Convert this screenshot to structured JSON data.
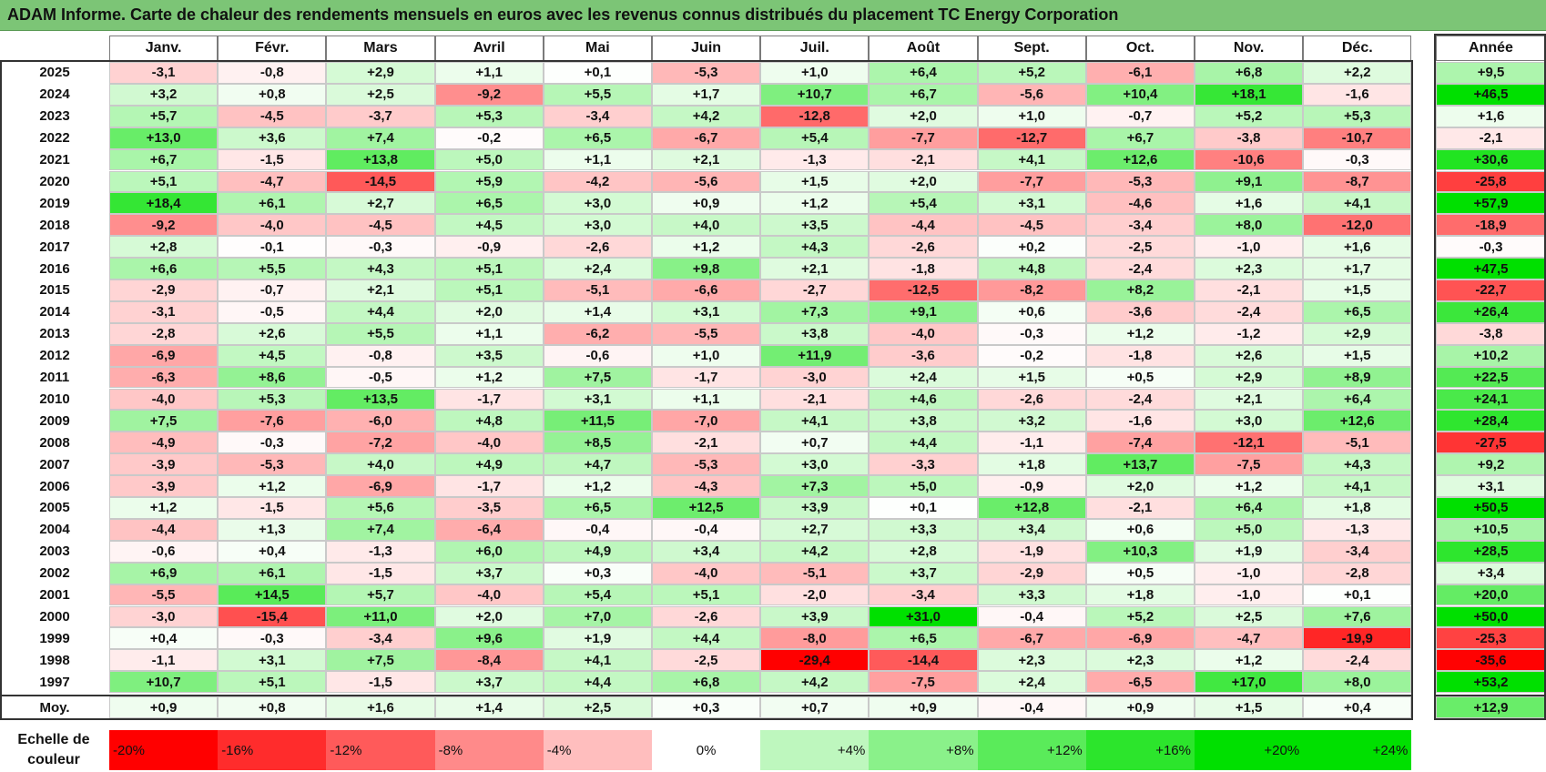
{
  "title": "ADAM Informe. Carte de chaleur des rendements mensuels en euros avec les revenus connus distribués du placement TC Energy Corporation",
  "months": [
    "Janv.",
    "Févr.",
    "Mars",
    "Avril",
    "Mai",
    "Juin",
    "Juil.",
    "Août",
    "Sept.",
    "Oct.",
    "Nov.",
    "Déc."
  ],
  "annual_header": "Année",
  "average_label": "Moy.",
  "legend_label": "Echelle de couleur",
  "colors": {
    "negative": "#ff0000",
    "zero": "#ffffff",
    "positive": "#00e000",
    "title_bg": "#7cc576"
  },
  "chart_data": {
    "type": "heatmap",
    "title": "ADAM Informe. Carte de chaleur des rendements mensuels en euros avec les revenus connus distribués du placement TC Energy Corporation",
    "x_categories": [
      "Janv.",
      "Févr.",
      "Mars",
      "Avril",
      "Mai",
      "Juin",
      "Juil.",
      "Août",
      "Sept.",
      "Oct.",
      "Nov.",
      "Déc."
    ],
    "rows": [
      {
        "year": "2025",
        "values": [
          "-3,1",
          "-0,8",
          "+2,9",
          "+1,1",
          "+0,1",
          "-5,3",
          "+1,0",
          "+6,4",
          "+5,2",
          "-6,1",
          "+6,8",
          "+2,2"
        ],
        "annual": "+9,5"
      },
      {
        "year": "2024",
        "values": [
          "+3,2",
          "+0,8",
          "+2,5",
          "-9,2",
          "+5,5",
          "+1,7",
          "+10,7",
          "+6,7",
          "-5,6",
          "+10,4",
          "+18,1",
          "-1,6"
        ],
        "annual": "+46,5"
      },
      {
        "year": "2023",
        "values": [
          "+5,7",
          "-4,5",
          "-3,7",
          "+5,3",
          "-3,4",
          "+4,2",
          "-12,8",
          "+2,0",
          "+1,0",
          "-0,7",
          "+5,2",
          "+5,3"
        ],
        "annual": "+1,6"
      },
      {
        "year": "2022",
        "values": [
          "+13,0",
          "+3,6",
          "+7,4",
          "-0,2",
          "+6,5",
          "-6,7",
          "+5,4",
          "-7,7",
          "-12,7",
          "+6,7",
          "-3,8",
          "-10,7"
        ],
        "annual": "-2,1"
      },
      {
        "year": "2021",
        "values": [
          "+6,7",
          "-1,5",
          "+13,8",
          "+5,0",
          "+1,1",
          "+2,1",
          "-1,3",
          "-2,1",
          "+4,1",
          "+12,6",
          "-10,6",
          "-0,3"
        ],
        "annual": "+30,6"
      },
      {
        "year": "2020",
        "values": [
          "+5,1",
          "-4,7",
          "-14,5",
          "+5,9",
          "-4,2",
          "-5,6",
          "+1,5",
          "+2,0",
          "-7,7",
          "-5,3",
          "+9,1",
          "-8,7"
        ],
        "annual": "-25,8"
      },
      {
        "year": "2019",
        "values": [
          "+18,4",
          "+6,1",
          "+2,7",
          "+6,5",
          "+3,0",
          "+0,9",
          "+1,2",
          "+5,4",
          "+3,1",
          "-4,6",
          "+1,6",
          "+4,1"
        ],
        "annual": "+57,9"
      },
      {
        "year": "2018",
        "values": [
          "-9,2",
          "-4,0",
          "-4,5",
          "+4,5",
          "+3,0",
          "+4,0",
          "+3,5",
          "-4,4",
          "-4,5",
          "-3,4",
          "+8,0",
          "-12,0"
        ],
        "annual": "-18,9"
      },
      {
        "year": "2017",
        "values": [
          "+2,8",
          "-0,1",
          "-0,3",
          "-0,9",
          "-2,6",
          "+1,2",
          "+4,3",
          "-2,6",
          "+0,2",
          "-2,5",
          "-1,0",
          "+1,6"
        ],
        "annual": "-0,3"
      },
      {
        "year": "2016",
        "values": [
          "+6,6",
          "+5,5",
          "+4,3",
          "+5,1",
          "+2,4",
          "+9,8",
          "+2,1",
          "-1,8",
          "+4,8",
          "-2,4",
          "+2,3",
          "+1,7"
        ],
        "annual": "+47,5"
      },
      {
        "year": "2015",
        "values": [
          "-2,9",
          "-0,7",
          "+2,1",
          "+5,1",
          "-5,1",
          "-6,6",
          "-2,7",
          "-12,5",
          "-8,2",
          "+8,2",
          "-2,1",
          "+1,5"
        ],
        "annual": "-22,7"
      },
      {
        "year": "2014",
        "values": [
          "-3,1",
          "-0,5",
          "+4,4",
          "+2,0",
          "+1,4",
          "+3,1",
          "+7,3",
          "+9,1",
          "+0,6",
          "-3,6",
          "-2,4",
          "+6,5"
        ],
        "annual": "+26,4"
      },
      {
        "year": "2013",
        "values": [
          "-2,8",
          "+2,6",
          "+5,5",
          "+1,1",
          "-6,2",
          "-5,5",
          "+3,8",
          "-4,0",
          "-0,3",
          "+1,2",
          "-1,2",
          "+2,9"
        ],
        "annual": "-3,8"
      },
      {
        "year": "2012",
        "values": [
          "-6,9",
          "+4,5",
          "-0,8",
          "+3,5",
          "-0,6",
          "+1,0",
          "+11,9",
          "-3,6",
          "-0,2",
          "-1,8",
          "+2,6",
          "+1,5"
        ],
        "annual": "+10,2"
      },
      {
        "year": "2011",
        "values": [
          "-6,3",
          "+8,6",
          "-0,5",
          "+1,2",
          "+7,5",
          "-1,7",
          "-3,0",
          "+2,4",
          "+1,5",
          "+0,5",
          "+2,9",
          "+8,9"
        ],
        "annual": "+22,5"
      },
      {
        "year": "2010",
        "values": [
          "-4,0",
          "+5,3",
          "+13,5",
          "-1,7",
          "+3,1",
          "+1,1",
          "-2,1",
          "+4,6",
          "-2,6",
          "-2,4",
          "+2,1",
          "+6,4"
        ],
        "annual": "+24,1"
      },
      {
        "year": "2009",
        "values": [
          "+7,5",
          "-7,6",
          "-6,0",
          "+4,8",
          "+11,5",
          "-7,0",
          "+4,1",
          "+3,8",
          "+3,2",
          "-1,6",
          "+3,0",
          "+12,6"
        ],
        "annual": "+28,4"
      },
      {
        "year": "2008",
        "values": [
          "-4,9",
          "-0,3",
          "-7,2",
          "-4,0",
          "+8,5",
          "-2,1",
          "+0,7",
          "+4,4",
          "-1,1",
          "-7,4",
          "-12,1",
          "-5,1"
        ],
        "annual": "-27,5"
      },
      {
        "year": "2007",
        "values": [
          "-3,9",
          "-5,3",
          "+4,0",
          "+4,9",
          "+4,7",
          "-5,3",
          "+3,0",
          "-3,3",
          "+1,8",
          "+13,7",
          "-7,5",
          "+4,3"
        ],
        "annual": "+9,2"
      },
      {
        "year": "2006",
        "values": [
          "-3,9",
          "+1,2",
          "-6,9",
          "-1,7",
          "+1,2",
          "-4,3",
          "+7,3",
          "+5,0",
          "-0,9",
          "+2,0",
          "+1,2",
          "+4,1"
        ],
        "annual": "+3,1"
      },
      {
        "year": "2005",
        "values": [
          "+1,2",
          "-1,5",
          "+5,6",
          "-3,5",
          "+6,5",
          "+12,5",
          "+3,9",
          "+0,1",
          "+12,8",
          "-2,1",
          "+6,4",
          "+1,8"
        ],
        "annual": "+50,5"
      },
      {
        "year": "2004",
        "values": [
          "-4,4",
          "+1,3",
          "+7,4",
          "-6,4",
          "-0,4",
          "-0,4",
          "+2,7",
          "+3,3",
          "+3,4",
          "+0,6",
          "+5,0",
          "-1,3"
        ],
        "annual": "+10,5"
      },
      {
        "year": "2003",
        "values": [
          "-0,6",
          "+0,4",
          "-1,3",
          "+6,0",
          "+4,9",
          "+3,4",
          "+4,2",
          "+2,8",
          "-1,9",
          "+10,3",
          "+1,9",
          "-3,4"
        ],
        "annual": "+28,5"
      },
      {
        "year": "2002",
        "values": [
          "+6,9",
          "+6,1",
          "-1,5",
          "+3,7",
          "+0,3",
          "-4,0",
          "-5,1",
          "+3,7",
          "-2,9",
          "+0,5",
          "-1,0",
          "-2,8"
        ],
        "annual": "+3,4"
      },
      {
        "year": "2001",
        "values": [
          "-5,5",
          "+14,5",
          "+5,7",
          "-4,0",
          "+5,4",
          "+5,1",
          "-2,0",
          "-3,4",
          "+3,3",
          "+1,8",
          "-1,0",
          "+0,1"
        ],
        "annual": "+20,0"
      },
      {
        "year": "2000",
        "values": [
          "-3,0",
          "-15,4",
          "+11,0",
          "+2,0",
          "+7,0",
          "-2,6",
          "+3,9",
          "+31,0",
          "-0,4",
          "+5,2",
          "+2,5",
          "+7,6"
        ],
        "annual": "+50,0"
      },
      {
        "year": "1999",
        "values": [
          "+0,4",
          "-0,3",
          "-3,4",
          "+9,6",
          "+1,9",
          "+4,4",
          "-8,0",
          "+6,5",
          "-6,7",
          "-6,9",
          "-4,7",
          "-19,9"
        ],
        "annual": "-25,3"
      },
      {
        "year": "1998",
        "values": [
          "-1,1",
          "+3,1",
          "+7,5",
          "-8,4",
          "+4,1",
          "-2,5",
          "-29,4",
          "-14,4",
          "+2,3",
          "+2,3",
          "+1,2",
          "-2,4"
        ],
        "annual": "-35,6"
      },
      {
        "year": "1997",
        "values": [
          "+10,7",
          "+5,1",
          "-1,5",
          "+3,7",
          "+4,4",
          "+6,8",
          "+4,2",
          "-7,5",
          "+2,4",
          "-6,5",
          "+17,0",
          "+8,0"
        ],
        "annual": "+53,2"
      }
    ],
    "average": {
      "values": [
        "+0,9",
        "+0,8",
        "+1,6",
        "+1,4",
        "+2,5",
        "+0,3",
        "+0,7",
        "+0,9",
        "-0,4",
        "+0,9",
        "+1,5",
        "+0,4"
      ],
      "annual": "+12,9"
    },
    "legend": [
      "-20%",
      "-16%",
      "-12%",
      "-8%",
      "-4%",
      "0%",
      "+4%",
      "+8%",
      "+12%",
      "+16%",
      "+20%",
      "+24%"
    ]
  }
}
